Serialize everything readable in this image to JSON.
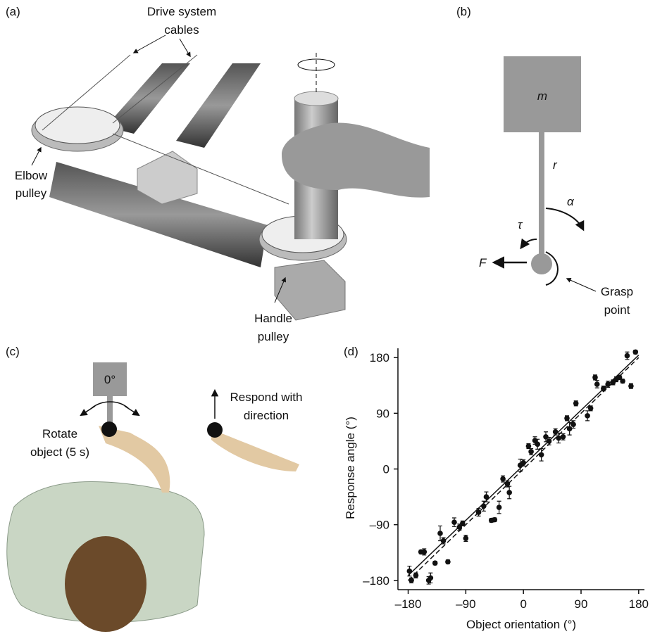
{
  "panels": {
    "a": {
      "label": "(a)",
      "cables": [
        "Drive system",
        "cables"
      ],
      "elbow": [
        "Elbow",
        "pulley"
      ],
      "handle": [
        "Handle",
        "pulley"
      ]
    },
    "b": {
      "label": "(b)",
      "mass": "m",
      "radius": "r",
      "alpha": "α",
      "tau": "τ",
      "force": "F",
      "grasp": [
        "Grasp",
        "point"
      ]
    },
    "c": {
      "label": "(c)",
      "angle": "0°",
      "respond": [
        "Respond with",
        "direction"
      ],
      "rotate": [
        "Rotate",
        "object (5 s)"
      ]
    }
  },
  "chart_data": {
    "type": "scatter",
    "label": "(d)",
    "x_label": "Object orientation (°)",
    "y_label": "Response angle (°)",
    "color": "#111111",
    "x": [
      -178,
      -175,
      -168,
      -160,
      -155,
      -148,
      -145,
      -138,
      -130,
      -125,
      -118,
      -108,
      -100,
      -95,
      -90,
      -70,
      -62,
      -58,
      -50,
      -45,
      -38,
      -32,
      -25,
      -22,
      -5,
      0,
      8,
      12,
      18,
      22,
      28,
      35,
      40,
      50,
      55,
      62,
      68,
      72,
      78,
      82,
      100,
      105,
      115,
      112,
      125,
      132,
      140,
      145,
      150,
      155,
      162,
      168,
      175
    ],
    "values": [
      -165,
      -180,
      -172,
      -134,
      -134,
      -180,
      -176,
      -152,
      -104,
      -116,
      -150,
      -86,
      -94,
      -88,
      -112,
      -70,
      -60,
      -45,
      -83,
      -82,
      -62,
      -16,
      -24,
      -38,
      6,
      10,
      37,
      28,
      46,
      40,
      23,
      52,
      45,
      60,
      50,
      52,
      82,
      65,
      72,
      106,
      86,
      98,
      137,
      148,
      130,
      137,
      140,
      145,
      148,
      142,
      183,
      134,
      189
    ],
    "errors": [
      8,
      4,
      4,
      3,
      5,
      6,
      8,
      3,
      12,
      5,
      3,
      7,
      5,
      4,
      5,
      6,
      8,
      8,
      3,
      3,
      10,
      5,
      5,
      10,
      10,
      5,
      4,
      5,
      6,
      8,
      10,
      8,
      6,
      5,
      8,
      5,
      4,
      10,
      6,
      4,
      8,
      4,
      6,
      4,
      4,
      5,
      4,
      4,
      3,
      3,
      6,
      4,
      3
    ],
    "reference_lines": [
      {
        "style": "dashed",
        "x": [
          -180,
          180
        ],
        "y": [
          -180,
          180
        ]
      },
      {
        "style": "solid",
        "x": [
          -180,
          180
        ],
        "y": [
          -172,
          184
        ]
      }
    ],
    "xlim": [
      -196,
      189
    ],
    "ylim": [
      -195,
      195
    ],
    "xticks": [
      {
        "value": -180,
        "label": "–180"
      },
      {
        "value": -90,
        "label": "–90"
      },
      0,
      90,
      180
    ],
    "yticks": [
      {
        "value": -180,
        "label": "–180"
      },
      {
        "value": -90,
        "label": "–90"
      },
      0,
      90,
      180
    ]
  }
}
